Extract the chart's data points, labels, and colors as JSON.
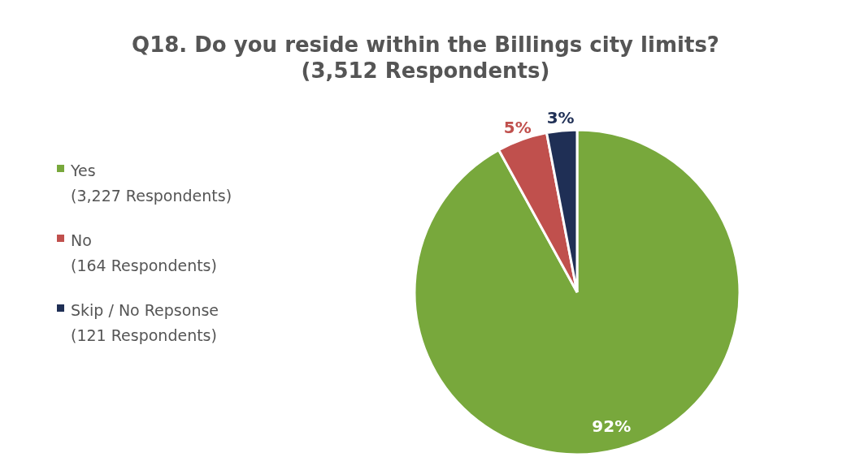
{
  "chart_data": {
    "type": "pie",
    "title": "Q18. Do you reside within the Billings city limits?",
    "subtitle": "(3,512 Respondents)",
    "categories": [
      "Yes\n(3,227 Respondents)",
      "No\n(164 Respondents)",
      "Skip / No Repsonse\n(121 Respondents)"
    ],
    "values": [
      92,
      5,
      3
    ],
    "colors": [
      "#78a83c",
      "#c0504d",
      "#1f2f55"
    ],
    "value_labels": [
      "92%",
      "5%",
      "3%"
    ],
    "legend": "left"
  }
}
